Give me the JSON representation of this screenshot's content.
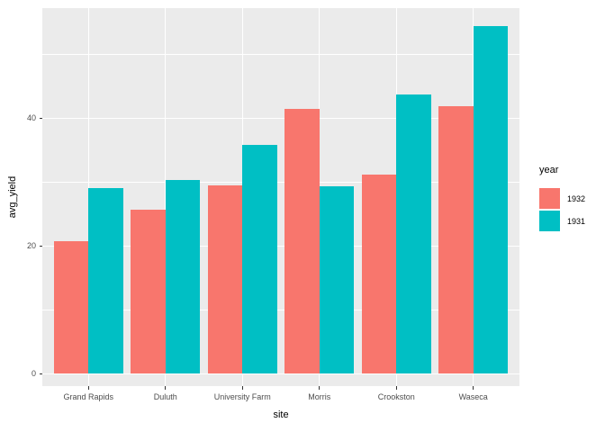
{
  "chart_data": {
    "type": "bar",
    "title": "",
    "xlabel": "site",
    "ylabel": "avg_yield",
    "categories": [
      "Grand Rapids",
      "Duluth",
      "University Farm",
      "Morris",
      "Crookston",
      "Waseca"
    ],
    "series": [
      {
        "name": "1932",
        "color": "#F8766D",
        "values": [
          20.81,
          25.7,
          29.51,
          41.51,
          31.18,
          41.87
        ]
      },
      {
        "name": "1931",
        "color": "#00BFC4",
        "values": [
          29.05,
          30.29,
          35.83,
          29.29,
          43.66,
          54.35
        ]
      }
    ],
    "legend_title": "year",
    "legend_position": "right",
    "y_ticks": [
      0,
      20,
      40
    ],
    "y_minor_ticks": [
      10,
      30,
      50
    ],
    "ylim": [
      -1.9,
      57.2
    ],
    "grid": "major-and-minor, white on grey panel",
    "panel_bg": "#EBEBEB",
    "grid_color": "#FFFFFF",
    "axis_text_color": "#4D4D4D",
    "tick_mark_color": "#333333",
    "bar_group_width_fraction": 0.9
  }
}
